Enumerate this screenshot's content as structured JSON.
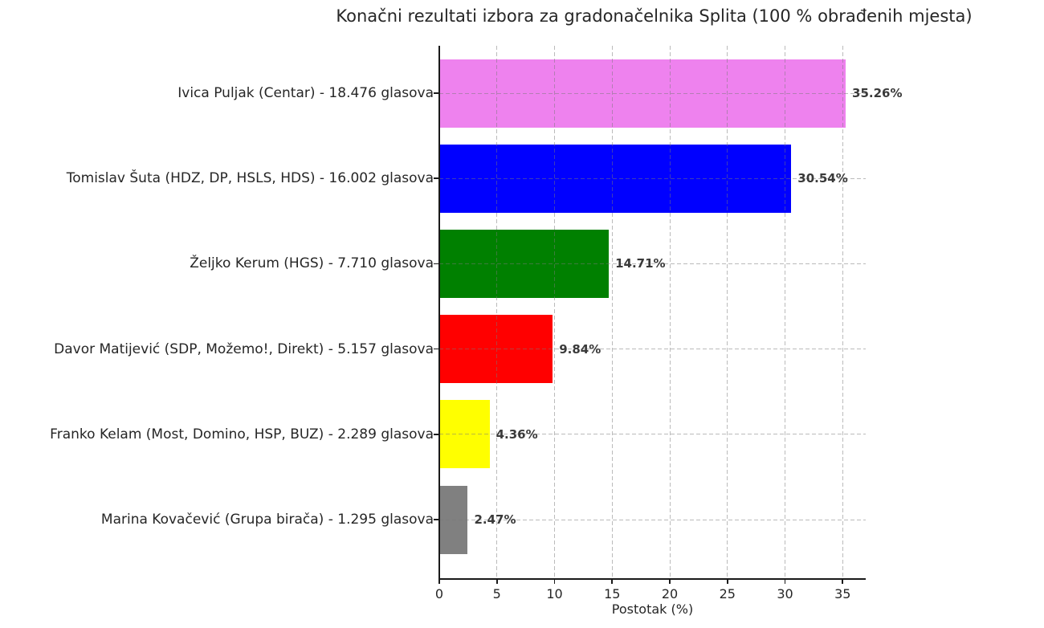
{
  "chart_data": {
    "type": "bar",
    "orientation": "horizontal",
    "title": "Konačni rezultati izbora za gradonačelnika Splita (100 % obrađenih mjesta)",
    "xlabel": "Postotak (%)",
    "categories": [
      "Ivica Puljak (Centar) - 18.476 glasova",
      "Tomislav Šuta (HDZ, DP, HSLS, HDS) - 16.002 glasova",
      "Željko Kerum (HGS) - 7.710 glasova",
      "Davor Matijević (SDP, Možemo!, Direkt) - 5.157 glasova",
      "Franko Kelam (Most, Domino, HSP, BUZ) - 2.289 glasova",
      "Marina Kovačević (Grupa birača) - 1.295 glasova"
    ],
    "values": [
      35.26,
      30.54,
      14.71,
      9.84,
      4.36,
      2.47
    ],
    "value_labels": [
      "35.26%",
      "30.54%",
      "14.71%",
      "9.84%",
      "4.36%",
      "2.47%"
    ],
    "bar_colors": [
      "#ee82ee",
      "#0000ff",
      "#008000",
      "#ff0000",
      "#ffff00",
      "#808080"
    ],
    "xticks": [
      0,
      5,
      10,
      15,
      20,
      25,
      30,
      35
    ],
    "xlim": [
      0,
      37
    ],
    "grid": "dashed",
    "legend": "none",
    "axis_color": "#1a1a1a",
    "value_label_color": "#3a3a3a"
  }
}
